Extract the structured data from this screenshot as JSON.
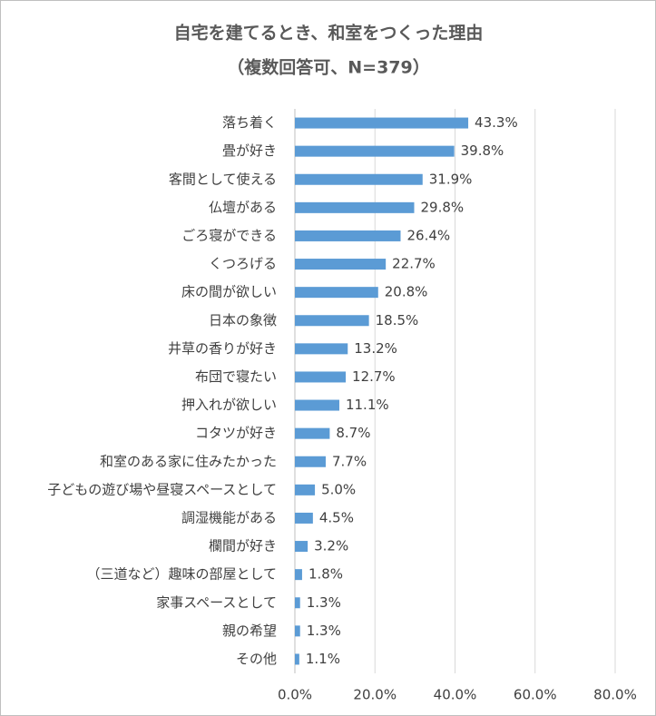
{
  "chart_data": {
    "type": "bar",
    "orientation": "horizontal",
    "title": "自宅を建てるとき、和室をつくった理由",
    "subtitle": "（複数回答可、N=379）",
    "categories": [
      "落ち着く",
      "畳が好き",
      "客間として使える",
      "仏壇がある",
      "ごろ寝ができる",
      "くつろげる",
      "床の間が欲しい",
      "日本の象徴",
      "井草の香りが好き",
      "布団で寝たい",
      "押入れが欲しい",
      "コタツが好き",
      "和室のある家に住みたかった",
      "子どもの遊び場や昼寝スペースとして",
      "調湿機能がある",
      "欄間が好き",
      "（三道など）趣味の部屋として",
      "家事スペースとして",
      "親の希望",
      "その他"
    ],
    "values": [
      43.3,
      39.8,
      31.9,
      29.8,
      26.4,
      22.7,
      20.8,
      18.5,
      13.2,
      12.7,
      11.1,
      8.7,
      7.7,
      5.0,
      4.5,
      3.2,
      1.8,
      1.3,
      1.3,
      1.1
    ],
    "value_labels": [
      "43.3%",
      "39.8%",
      "31.9%",
      "29.8%",
      "26.4%",
      "22.7%",
      "20.8%",
      "18.5%",
      "13.2%",
      "12.7%",
      "11.1%",
      "8.7%",
      "7.7%",
      "5.0%",
      "4.5%",
      "3.2%",
      "1.8%",
      "1.3%",
      "1.3%",
      "1.1%"
    ],
    "color": "#5b9bd5",
    "xlim": [
      0,
      80
    ],
    "xticks": [
      {
        "value": 0,
        "label": "0.0%"
      },
      {
        "value": 20,
        "label": "20.0%"
      },
      {
        "value": 40,
        "label": "40.0%"
      },
      {
        "value": 60,
        "label": "60.0%"
      },
      {
        "value": 80,
        "label": "80.0%"
      }
    ],
    "grid": true
  }
}
